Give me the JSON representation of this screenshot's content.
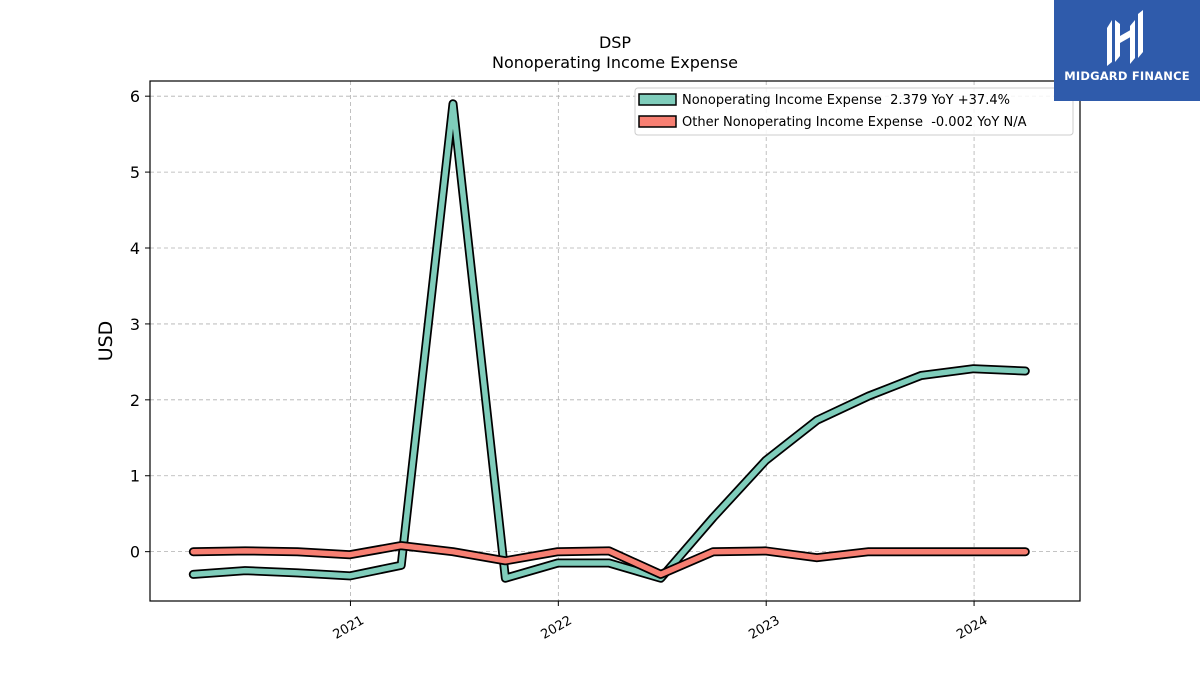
{
  "chart_data": {
    "type": "line",
    "title": "DSP",
    "subtitle": "Nonoperating Income Expense",
    "ylabel": "USD",
    "xlabel": "",
    "xlim": [
      "2020-01-15",
      "2024-07-05"
    ],
    "ylim": [
      -0.65,
      6.2
    ],
    "yticks": [
      0,
      1,
      2,
      3,
      4,
      5,
      6
    ],
    "xticks": [
      {
        "date": "2021-01-01",
        "label": "2021"
      },
      {
        "date": "2022-01-01",
        "label": "2022"
      },
      {
        "date": "2023-01-01",
        "label": "2023"
      },
      {
        "date": "2024-01-01",
        "label": "2024"
      }
    ],
    "grid": true,
    "legend_position": "top-right",
    "x": [
      "2020-03-31",
      "2020-06-30",
      "2020-09-30",
      "2020-12-31",
      "2021-03-31",
      "2021-06-30",
      "2021-09-30",
      "2021-12-31",
      "2022-03-31",
      "2022-06-30",
      "2022-09-30",
      "2022-12-31",
      "2023-03-31",
      "2023-06-30",
      "2023-09-30",
      "2023-12-31",
      "2024-03-31"
    ],
    "series": [
      {
        "name": "Nonoperating Income Expense  2.379 YoY +37.4%",
        "color": "#7fcdbb",
        "values": [
          -0.3,
          -0.25,
          -0.28,
          -0.32,
          -0.18,
          5.9,
          -0.35,
          -0.15,
          -0.15,
          -0.35,
          0.45,
          1.2,
          1.73,
          2.05,
          2.32,
          2.41,
          2.38
        ]
      },
      {
        "name": "Other Nonoperating Income Expense  -0.002 YoY N/A",
        "color": "#f77f72",
        "values": [
          0.0,
          0.01,
          0.0,
          -0.04,
          0.08,
          0.0,
          -0.12,
          0.0,
          0.01,
          -0.3,
          0.0,
          0.01,
          -0.08,
          0.0,
          0.0,
          0.0,
          0.0
        ]
      }
    ]
  },
  "brand": {
    "name": "MIDGARD FINANCE",
    "color": "#2f5bab"
  }
}
